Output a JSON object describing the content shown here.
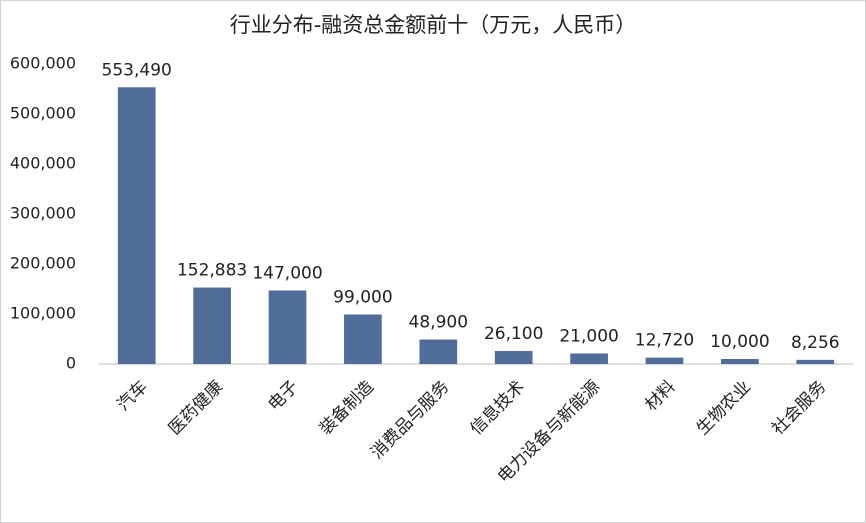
{
  "chart_data": {
    "type": "bar",
    "title": "行业分布-融资总金额前十（万元，人民币）",
    "categories": [
      "汽车",
      "医药健康",
      "电子",
      "装备制造",
      "消费品与服务",
      "信息技术",
      "电力设备与新能源",
      "材料",
      "生物农业",
      "社会服务"
    ],
    "values": [
      553490,
      152883,
      147000,
      99000,
      48900,
      26100,
      21000,
      12720,
      10000,
      8256
    ],
    "value_labels": [
      "553,490",
      "152,883",
      "147,000",
      "99,000",
      "48,900",
      "26,100",
      "21,000",
      "12,720",
      "10,000",
      "8,256"
    ],
    "color": "#4f6d98",
    "ylim": [
      0,
      600000
    ],
    "yticks": [
      0,
      {
        "value": 100000,
        "label": "100,000"
      },
      {
        "value": 200000,
        "label": "200,000"
      },
      {
        "value": 300000,
        "label": "300,000"
      },
      {
        "value": 400000,
        "label": "400,000"
      },
      {
        "value": 500000,
        "label": "500,000"
      },
      {
        "value": 600000,
        "label": "600,000"
      }
    ],
    "grid": false
  }
}
